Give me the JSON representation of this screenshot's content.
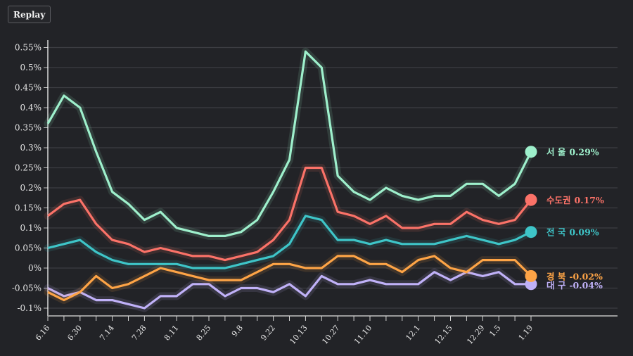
{
  "controls": {
    "replay_label": "Replay"
  },
  "chart_data": {
    "type": "line",
    "title": "",
    "xlabel": "",
    "ylabel": "",
    "ylim": [
      -0.1,
      0.55
    ],
    "yticks": [
      -0.1,
      -0.05,
      0,
      0.05,
      0.1,
      0.15,
      0.2,
      0.25,
      0.3,
      0.35,
      0.4,
      0.45,
      0.5,
      0.55
    ],
    "ytick_labels": [
      "-0.1%",
      "-0.05%",
      "0%",
      "0.05%",
      "0.1%",
      "0.15%",
      "0.2%",
      "0.25%",
      "0.3%",
      "0.35%",
      "0.4%",
      "0.45%",
      "0.5%",
      "0.55%"
    ],
    "x_count": 31,
    "xtick_labels": [
      {
        "i": 0,
        "label": "6.16"
      },
      {
        "i": 2,
        "label": "6.30"
      },
      {
        "i": 4,
        "label": "7.14"
      },
      {
        "i": 6,
        "label": "7.28"
      },
      {
        "i": 8,
        "label": "8.11"
      },
      {
        "i": 10,
        "label": "8.25"
      },
      {
        "i": 12,
        "label": "9.8"
      },
      {
        "i": 14,
        "label": "9.22"
      },
      {
        "i": 16,
        "label": "10.13"
      },
      {
        "i": 18,
        "label": "10.27"
      },
      {
        "i": 20,
        "label": "11.10"
      },
      {
        "i": 23,
        "label": "12.1"
      },
      {
        "i": 25,
        "label": "12.15"
      },
      {
        "i": 27,
        "label": "12.29"
      },
      {
        "i": 28,
        "label": "1.5"
      },
      {
        "i": 30,
        "label": "1.19"
      }
    ],
    "grid": true,
    "series": [
      {
        "name": "서 울",
        "end_label": "0.29%",
        "color": "#9ef0cc",
        "values": [
          0.36,
          0.43,
          0.4,
          0.29,
          0.19,
          0.16,
          0.12,
          0.14,
          0.1,
          0.09,
          0.08,
          0.08,
          0.09,
          0.12,
          0.19,
          0.27,
          0.54,
          0.5,
          0.23,
          0.19,
          0.17,
          0.2,
          0.18,
          0.17,
          0.18,
          0.18,
          0.21,
          0.21,
          0.18,
          0.21,
          0.29
        ]
      },
      {
        "name": "수도권",
        "end_label": "0.17%",
        "color": "#fb7268",
        "values": [
          0.13,
          0.16,
          0.17,
          0.11,
          0.07,
          0.06,
          0.04,
          0.05,
          0.04,
          0.03,
          0.03,
          0.02,
          0.03,
          0.04,
          0.07,
          0.12,
          0.25,
          0.25,
          0.14,
          0.13,
          0.11,
          0.13,
          0.1,
          0.1,
          0.11,
          0.11,
          0.14,
          0.12,
          0.11,
          0.12,
          0.17
        ]
      },
      {
        "name": "전 국",
        "end_label": "0.09%",
        "color": "#3ec5c8",
        "values": [
          0.05,
          0.06,
          0.07,
          0.04,
          0.02,
          0.01,
          0.01,
          0.01,
          0.01,
          0.0,
          0.0,
          0.0,
          0.01,
          0.02,
          0.03,
          0.06,
          0.13,
          0.12,
          0.07,
          0.07,
          0.06,
          0.07,
          0.06,
          0.06,
          0.06,
          0.07,
          0.08,
          0.07,
          0.06,
          0.07,
          0.09
        ]
      },
      {
        "name": "경 북",
        "end_label": "-0.02%",
        "color": "#fea446",
        "values": [
          -0.06,
          -0.08,
          -0.06,
          -0.02,
          -0.05,
          -0.04,
          -0.02,
          0.0,
          -0.01,
          -0.02,
          -0.03,
          -0.03,
          -0.03,
          -0.01,
          0.01,
          0.01,
          0.0,
          0.0,
          0.03,
          0.03,
          0.01,
          0.01,
          -0.01,
          0.02,
          0.03,
          0.0,
          -0.01,
          0.02,
          0.02,
          0.02,
          -0.02
        ]
      },
      {
        "name": "대 구",
        "end_label": "-0.04%",
        "color": "#c0b1f8",
        "values": [
          -0.05,
          -0.07,
          -0.06,
          -0.08,
          -0.08,
          -0.09,
          -0.1,
          -0.07,
          -0.07,
          -0.04,
          -0.04,
          -0.07,
          -0.05,
          -0.05,
          -0.06,
          -0.04,
          -0.07,
          -0.02,
          -0.04,
          -0.04,
          -0.03,
          -0.04,
          -0.04,
          -0.04,
          -0.01,
          -0.03,
          -0.01,
          -0.02,
          -0.01,
          -0.04,
          -0.04
        ]
      }
    ]
  }
}
